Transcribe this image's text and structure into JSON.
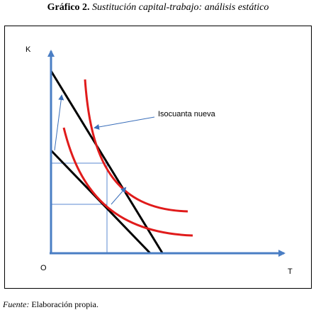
{
  "figure": {
    "title_number": "Gráfico 2.",
    "title_text": "Sustitución capital-trabajo: análisis estático"
  },
  "diagram": {
    "axis_y_label": "K",
    "axis_x_label": "T",
    "origin_label": "O",
    "annotation_label": "Isocuanta nueva",
    "colors": {
      "axis": "#4a7ec4",
      "isoquant": "#e01b1b",
      "budget_line": "#000000",
      "guide_line": "#5b8ad0",
      "annotation_arrow": "#3a6fba"
    }
  },
  "footer": {
    "source_label": "Fuente:",
    "source_text": "Elaboración propia."
  }
}
